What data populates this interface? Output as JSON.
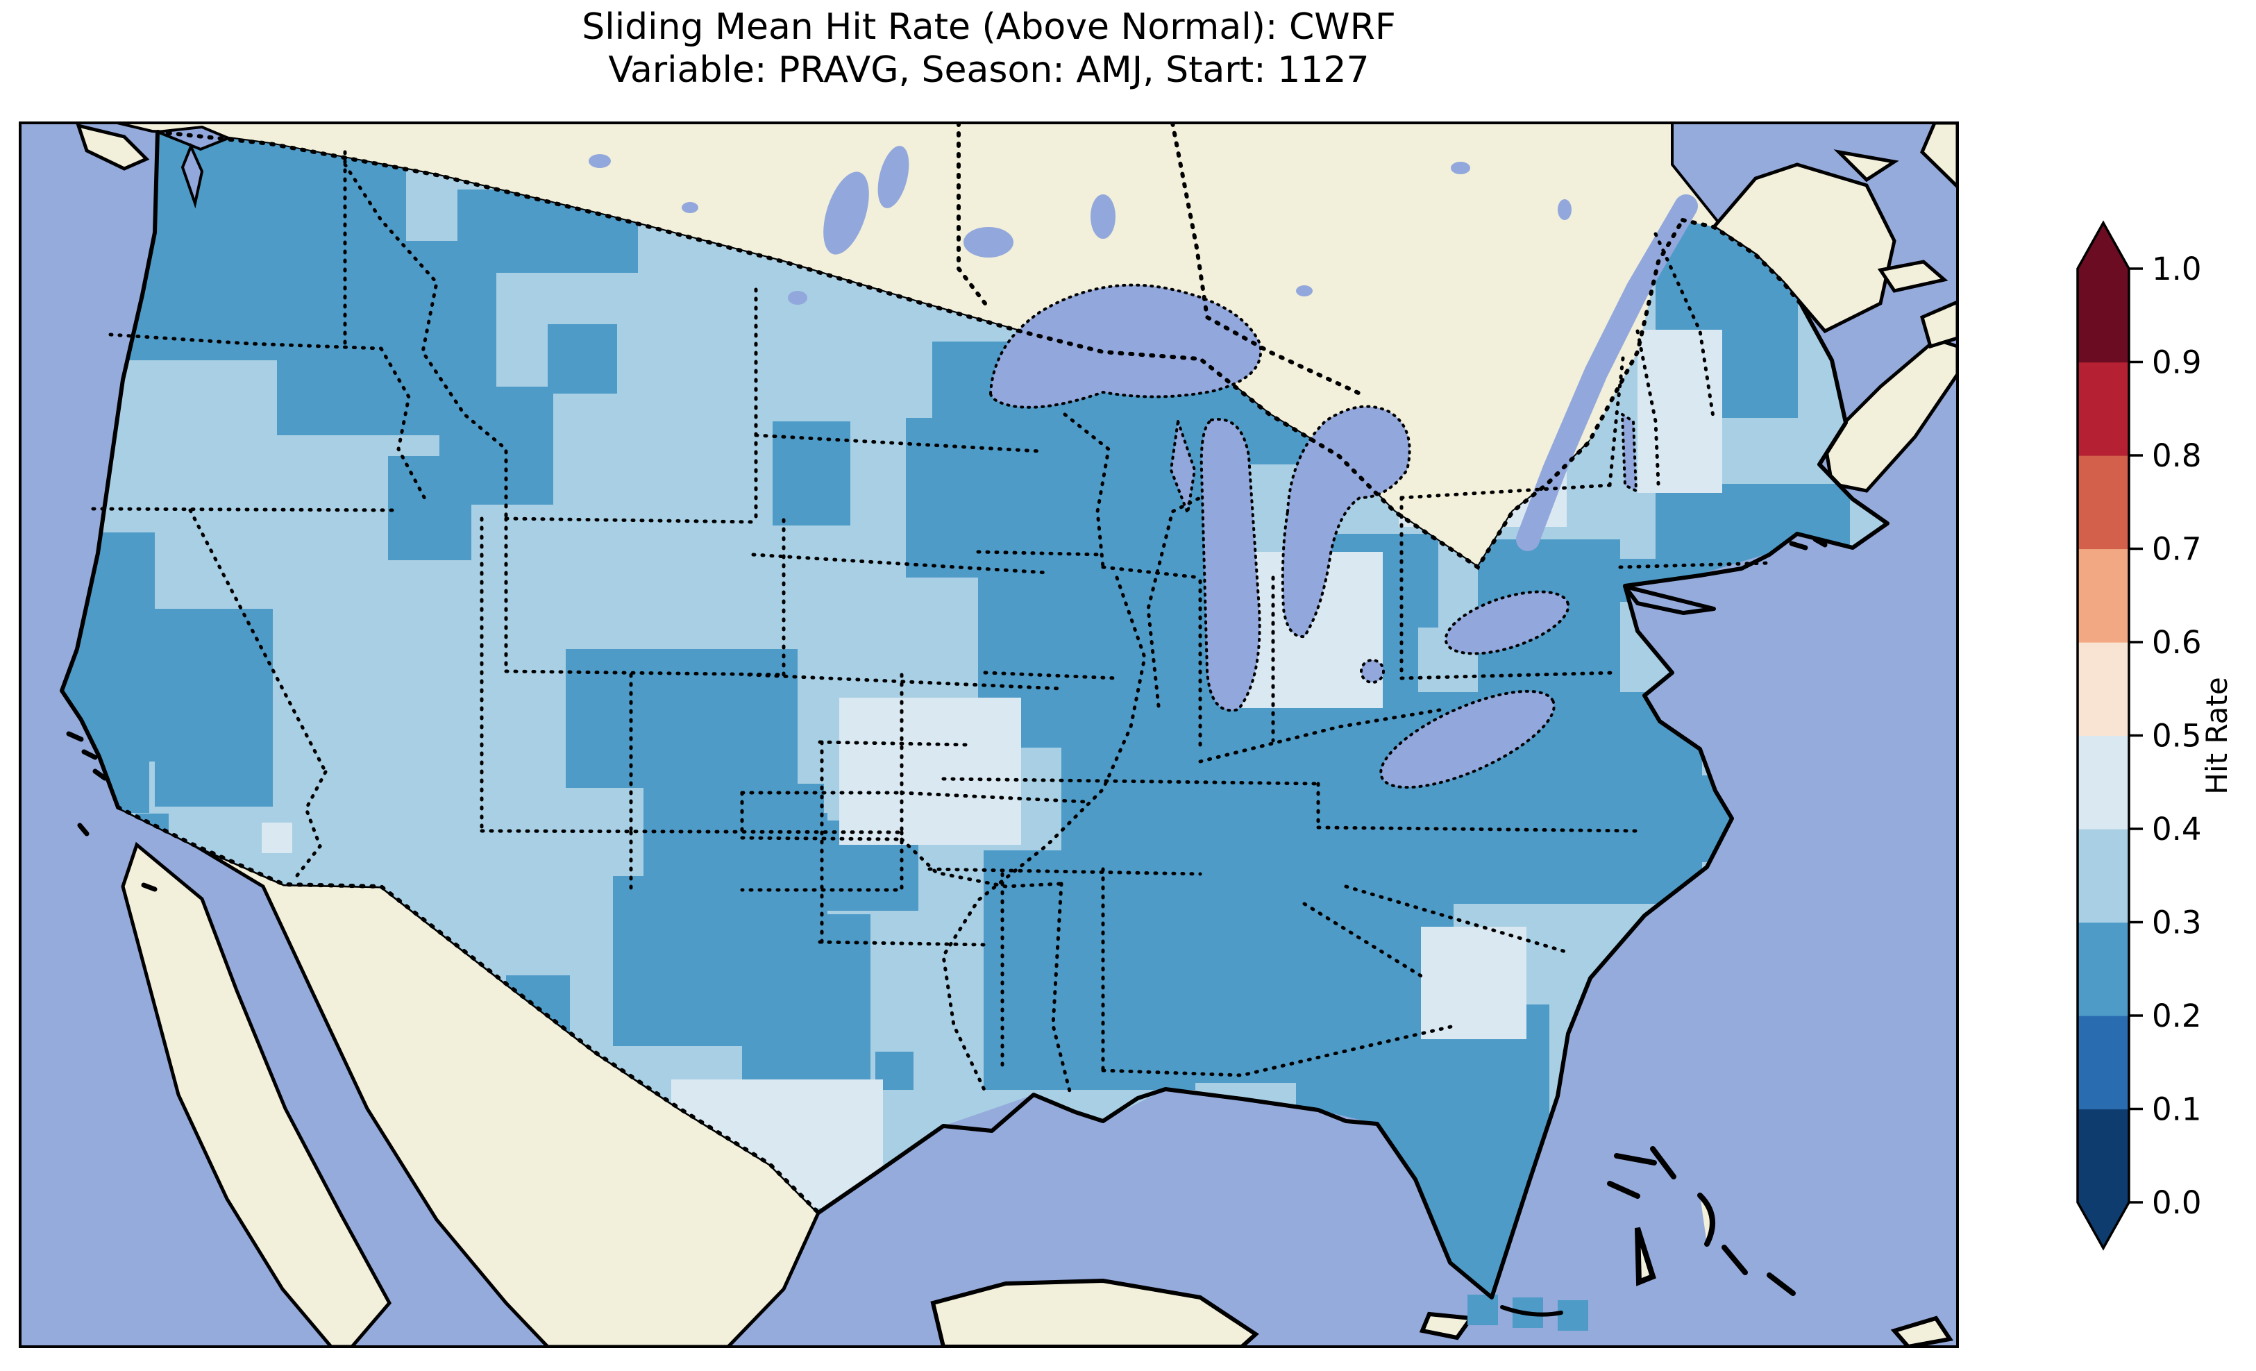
{
  "title": {
    "line1": "Sliding Mean Hit Rate (Above Normal): CWRF",
    "line2": "Variable: PRAVG, Season: AMJ, Start: 1127"
  },
  "colorbar": {
    "label": "Hit Rate",
    "extend": "both",
    "ticks": [
      {
        "v": 1.0,
        "label": "1.0"
      },
      {
        "v": 0.9,
        "label": "0.9"
      },
      {
        "v": 0.8,
        "label": "0.8"
      },
      {
        "v": 0.7,
        "label": "0.7"
      },
      {
        "v": 0.6,
        "label": "0.6"
      },
      {
        "v": 0.5,
        "label": "0.5"
      },
      {
        "v": 0.4,
        "label": "0.4"
      },
      {
        "v": 0.3,
        "label": "0.3"
      },
      {
        "v": 0.2,
        "label": "0.2"
      },
      {
        "v": 0.1,
        "label": "0.1"
      },
      {
        "v": 0.0,
        "label": "0.0"
      }
    ],
    "bins": [
      {
        "min": 0.0,
        "max": 0.1,
        "color": "#0E3C6E"
      },
      {
        "min": 0.1,
        "max": 0.2,
        "color": "#2A6CB0"
      },
      {
        "min": 0.2,
        "max": 0.3,
        "color": "#4E9BC8"
      },
      {
        "min": 0.3,
        "max": 0.4,
        "color": "#A8CFE4"
      },
      {
        "min": 0.4,
        "max": 0.5,
        "color": "#DAE8F2"
      },
      {
        "min": 0.5,
        "max": 0.6,
        "color": "#F9E3D3"
      },
      {
        "min": 0.6,
        "max": 0.7,
        "color": "#F2A983"
      },
      {
        "min": 0.7,
        "max": 0.8,
        "color": "#D2604B"
      },
      {
        "min": 0.8,
        "max": 0.9,
        "color": "#B52132"
      },
      {
        "min": 0.9,
        "max": 1.0,
        "color": "#6B0C23"
      }
    ],
    "under_color": "#0E3C6E",
    "over_color": "#6B0C23"
  },
  "map_colors": {
    "ocean": "#95ABDC",
    "land": "#F2EFDA",
    "lake": "#92A7DC",
    "coastline": "#000000",
    "frame": "#000000"
  },
  "chart_data": {
    "type": "heatmap",
    "subtype": "geographic gridded hit-rate map (pcolormesh over CONUS)",
    "title": "Sliding Mean Hit Rate (Above Normal): CWRF",
    "subtitle": "Variable: PRAVG, Season: AMJ, Start: 1127",
    "model": "CWRF",
    "variable": "PRAVG",
    "season": "AMJ",
    "start": "1127",
    "metric": "Hit Rate (Above Normal)",
    "region": "Contiguous United States",
    "colormap": "RdBu reversed, 10 discrete bins from 0.0 to 1.0, extended both ends",
    "colorbar_label": "Hit Rate",
    "value_range_shown": [
      0.2,
      0.5
    ],
    "base_value_band": "0.3-0.4",
    "region_values": [
      {
        "region": "Washington / N Idaho",
        "hit_rate": "0.2-0.3"
      },
      {
        "region": "Oregon / Great Basin / Southwest",
        "hit_rate": "0.3-0.4"
      },
      {
        "region": "California coast & Central Valley",
        "hit_rate": "0.2-0.3"
      },
      {
        "region": "Montana mountain belt",
        "hit_rate": "0.2-0.3"
      },
      {
        "region": "Northern & central Plains",
        "hit_rate": "0.3-0.4"
      },
      {
        "region": "Central Kansas / Missouri pocket",
        "hit_rate": "0.4-0.5"
      },
      {
        "region": "Minnesota / Wisconsin / Michigan UP",
        "hit_rate": "0.2-0.3"
      },
      {
        "region": "Iowa / Illinois / Ohio valley",
        "hit_rate": "0.2-0.3"
      },
      {
        "region": "Lower Michigan pocket",
        "hit_rate": "0.4-0.5"
      },
      {
        "region": "Central Oklahoma / central Texas",
        "hit_rate": "0.2-0.3"
      },
      {
        "region": "South Texas pocket",
        "hit_rate": "0.4-0.5"
      },
      {
        "region": "Arkansas / Louisiana / Mississippi / Alabama",
        "hit_rate": "0.2-0.3"
      },
      {
        "region": "Georgia - South Carolina pocket",
        "hit_rate": "0.4-0.5"
      },
      {
        "region": "Florida peninsula",
        "hit_rate": "0.2-0.3"
      },
      {
        "region": "Virginia / Carolinas / Appalachians",
        "hit_rate": "0.2-0.3"
      },
      {
        "region": "Pennsylvania / upstate New York",
        "hit_rate": "0.3-0.5"
      },
      {
        "region": "Vermont / New Hampshire pocket",
        "hit_rate": "0.4-0.5"
      },
      {
        "region": "Maine & southern New England",
        "hit_rate": "0.2-0.3"
      },
      {
        "region": "Arizona lone cell",
        "hit_rate": "0.4-0.5"
      }
    ],
    "map_units": "SVG pixels inside 2791x1763 map panel",
    "patches": {
      "dark_02_03": [
        [
          52,
          0,
          466,
          212
        ],
        [
          126,
          212,
          318,
          130
        ],
        [
          370,
          330,
          296,
          120
        ],
        [
          444,
          52,
          112,
          278
        ],
        [
          630,
          96,
          260,
          120
        ],
        [
          556,
          170,
          130,
          270
        ],
        [
          604,
          380,
          164,
          170
        ],
        [
          530,
          480,
          120,
          150
        ],
        [
          760,
          290,
          100,
          100
        ],
        [
          1084,
          430,
          112,
          150
        ],
        [
          30,
          590,
          164,
          330
        ],
        [
          194,
          700,
          170,
          285
        ],
        [
          104,
          912,
          82,
          82
        ],
        [
          166,
          995,
          48,
          48
        ],
        [
          786,
          758,
          334,
          200
        ],
        [
          898,
          952,
          260,
          205
        ],
        [
          1158,
          1005,
          136,
          130
        ],
        [
          1314,
          315,
          440,
          110
        ],
        [
          1276,
          425,
          118,
          230
        ],
        [
          1388,
          420,
          370,
          305
        ],
        [
          1694,
          322,
          305,
          170
        ],
        [
          1380,
          640,
          305,
          260
        ],
        [
          1500,
          866,
          205,
          155
        ],
        [
          1684,
          692,
          330,
          335
        ],
        [
          1858,
          592,
          185,
          135
        ],
        [
          2356,
          140,
          205,
          285
        ],
        [
          2356,
          520,
          280,
          135
        ],
        [
          2290,
          628,
          190,
          62
        ],
        [
          2100,
          600,
          205,
          235
        ],
        [
          1988,
          820,
          435,
          305
        ],
        [
          2298,
          940,
          165,
          125
        ],
        [
          1500,
          948,
          565,
          435
        ],
        [
          1388,
          1048,
          305,
          345
        ],
        [
          1938,
          1270,
          265,
          325
        ],
        [
          1998,
          1558,
          165,
          165
        ],
        [
          1838,
          1378,
          165,
          125
        ],
        [
          918,
          994,
          245,
          172
        ],
        [
          854,
          1085,
          305,
          245
        ],
        [
          1040,
          1140,
          185,
          255
        ],
        [
          700,
          1228,
          92,
          92
        ],
        [
          1232,
          1338,
          55,
          55
        ]
      ],
      "pale_04_05": [
        [
          1180,
          828,
          262,
          212
        ],
        [
          938,
          1378,
          305,
          185
        ],
        [
          2018,
          1158,
          152,
          162
        ],
        [
          1758,
          618,
          205,
          225
        ],
        [
          2330,
          298,
          122,
          235
        ],
        [
          1986,
          450,
          242,
          132
        ],
        [
          348,
          1008,
          44,
          44
        ]
      ],
      "loose_cells_02_03": [
        [
          2085,
          1688,
          44,
          44
        ],
        [
          2150,
          1692,
          44,
          44
        ],
        [
          2215,
          1696,
          44,
          44
        ]
      ]
    }
  }
}
